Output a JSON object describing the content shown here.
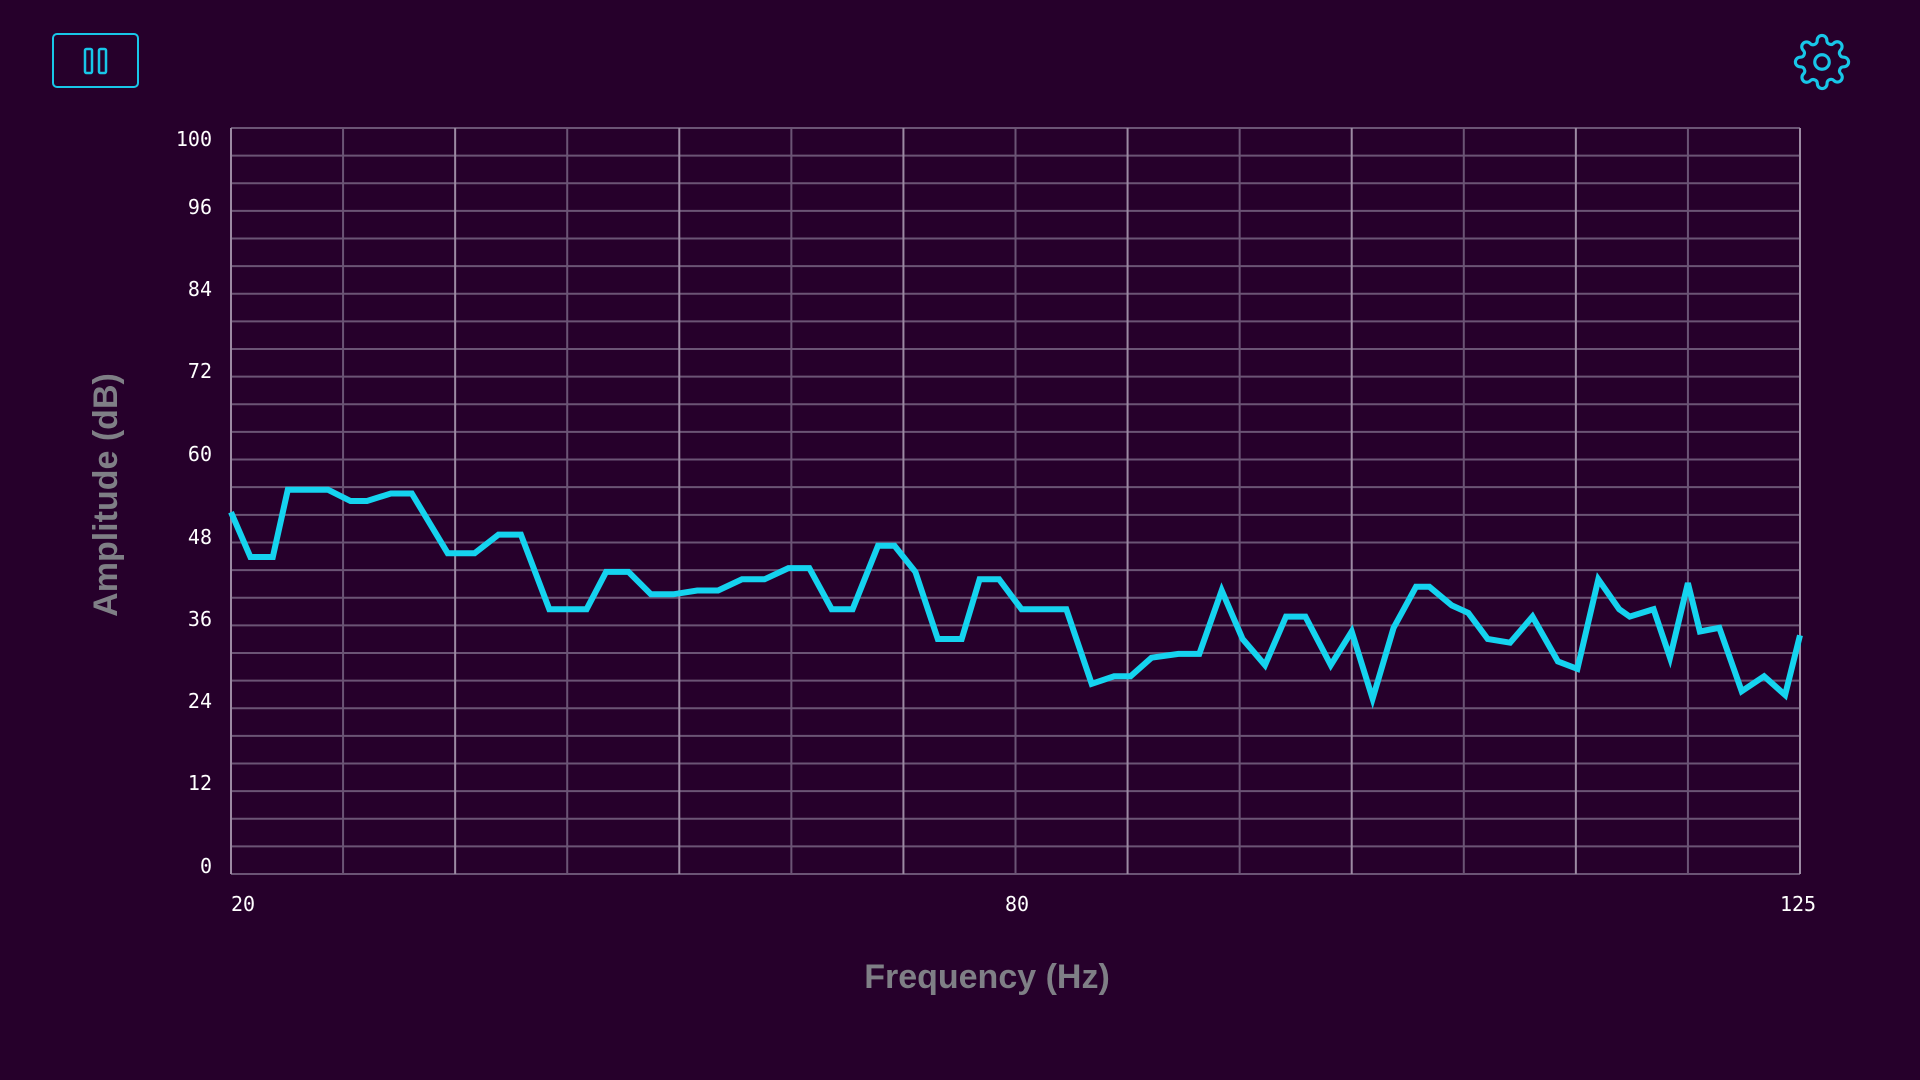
{
  "controls": {
    "pause_icon": "pause-icon",
    "settings_icon": "gear-icon"
  },
  "colors": {
    "background": "#26002b",
    "accent": "#18c6e8",
    "line": "#15d3ef",
    "grid": "#6b5475",
    "grid_major": "#9c8aa3",
    "axis_title": "#7f7f86"
  },
  "chart_data": {
    "type": "line",
    "title": "",
    "xlabel": "Frequency (Hz)",
    "ylabel": "Amplitude (dB)",
    "xlim": [
      20,
      125
    ],
    "ylim": [
      0,
      100
    ],
    "xticks": [
      "20",
      "80",
      "125"
    ],
    "yticks": [
      "0",
      "12",
      "24",
      "36",
      "48",
      "60",
      "72",
      "84",
      "96",
      "100"
    ],
    "grid": true,
    "series": [
      {
        "name": "amplitude",
        "x": [
          20,
          21.3,
          22.8,
          23.8,
          26.5,
          28,
          29.1,
          30.7,
          32.1,
          34.5,
          36.3,
          37.9,
          39.4,
          41.3,
          43.8,
          45.1,
          46.6,
          48.1,
          49.6,
          51.2,
          52.6,
          54.2,
          55.7,
          57.3,
          58.7,
          60.2,
          61.6,
          63.3,
          64.4,
          65.8,
          67.3,
          68.9,
          70.1,
          71.4,
          72.9,
          74.4,
          75.9,
          77.6,
          79.1,
          80.2,
          81.6,
          83.4,
          84.8,
          86.3,
          87.7,
          89.2,
          90.6,
          91.9,
          93.6,
          95,
          96.4,
          97.8,
          99.3,
          100.2,
          101.7,
          102.8,
          104.1,
          105.6,
          107.1,
          108.8,
          110.1,
          111.5,
          112.9,
          113.6,
          115.2,
          116.3,
          117.5,
          118.3,
          119.6,
          121.1,
          122.6,
          124,
          125
        ],
        "y": [
          48.5,
          42.5,
          42.5,
          51.5,
          51.5,
          50,
          50,
          51,
          51,
          43,
          43,
          45.5,
          45.5,
          35.5,
          35.5,
          40.5,
          40.5,
          37.5,
          37.5,
          38,
          38,
          39.5,
          39.5,
          41,
          41,
          35.5,
          35.5,
          44,
          44,
          40.5,
          31.5,
          31.5,
          39.5,
          39.5,
          35.5,
          35.5,
          35.5,
          25.5,
          26.5,
          26.5,
          29,
          29.5,
          29.5,
          38,
          31.5,
          28,
          34.5,
          34.5,
          28,
          32.5,
          23.5,
          33,
          38.5,
          38.5,
          36,
          35,
          31.5,
          31,
          34.5,
          28.5,
          27.5,
          39.5,
          35.5,
          34.5,
          35.5,
          29,
          39,
          32.5,
          33,
          24.5,
          26.5,
          24,
          32
        ]
      }
    ]
  }
}
